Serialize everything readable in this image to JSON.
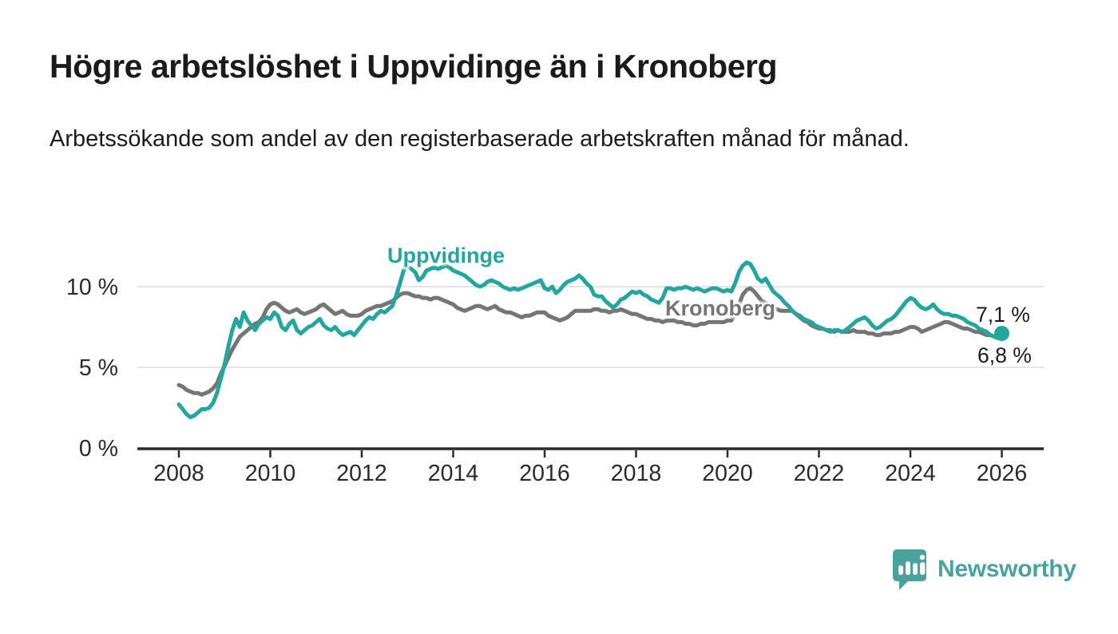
{
  "header": {
    "title": "Högre arbetslöshet i Uppvidinge än i Kronoberg",
    "subtitle": "Arbetssökande som andel av den registerbaserade arbetskraften månad för månad."
  },
  "chart_data": {
    "type": "line",
    "title": "Högre arbetslöshet i Uppvidinge än i Kronoberg",
    "subtitle": "Arbetssökande som andel av den registerbaserade arbetskraften månad för månad.",
    "x_unit": "months",
    "x_start_year": 2008,
    "x_end_year": 2026,
    "x_ticks": [
      2008,
      2010,
      2012,
      2014,
      2016,
      2018,
      2020,
      2022,
      2024,
      2026
    ],
    "y_ticks": [
      {
        "value": 0,
        "label": "0 %"
      },
      {
        "value": 5,
        "label": "5 %"
      },
      {
        "value": 10,
        "label": "10 %"
      }
    ],
    "ylim": [
      0,
      12.5
    ],
    "grid": "horizontal",
    "legend_position": "inline-labels",
    "series": [
      {
        "name": "Kronoberg",
        "color": "#757575",
        "end_value_label": "6,8 %",
        "values": [
          3.9,
          3.8,
          3.6,
          3.5,
          3.4,
          3.4,
          3.3,
          3.4,
          3.5,
          3.7,
          4.0,
          4.6,
          5.1,
          5.6,
          6.1,
          6.5,
          6.9,
          7.1,
          7.3,
          7.5,
          7.7,
          7.8,
          8.1,
          8.6,
          8.9,
          9.0,
          8.9,
          8.7,
          8.5,
          8.4,
          8.5,
          8.6,
          8.4,
          8.3,
          8.4,
          8.5,
          8.6,
          8.8,
          8.9,
          8.7,
          8.5,
          8.3,
          8.4,
          8.5,
          8.3,
          8.2,
          8.2,
          8.2,
          8.3,
          8.5,
          8.6,
          8.7,
          8.8,
          8.8,
          8.9,
          9.0,
          9.1,
          9.3,
          9.5,
          9.6,
          9.6,
          9.5,
          9.4,
          9.4,
          9.3,
          9.3,
          9.2,
          9.3,
          9.3,
          9.2,
          9.1,
          9.0,
          8.9,
          8.7,
          8.6,
          8.5,
          8.6,
          8.7,
          8.8,
          8.8,
          8.7,
          8.6,
          8.7,
          8.8,
          8.6,
          8.5,
          8.4,
          8.4,
          8.3,
          8.2,
          8.1,
          8.2,
          8.2,
          8.3,
          8.4,
          8.4,
          8.4,
          8.2,
          8.1,
          8.0,
          7.9,
          8.0,
          8.1,
          8.3,
          8.5,
          8.5,
          8.5,
          8.5,
          8.5,
          8.6,
          8.6,
          8.5,
          8.5,
          8.4,
          8.5,
          8.5,
          8.6,
          8.5,
          8.4,
          8.3,
          8.3,
          8.2,
          8.1,
          8.0,
          8.0,
          7.9,
          7.9,
          7.8,
          7.9,
          7.9,
          7.9,
          7.8,
          7.8,
          7.7,
          7.7,
          7.6,
          7.6,
          7.7,
          7.7,
          7.8,
          7.8,
          7.8,
          7.8,
          7.8,
          7.9,
          7.9,
          8.3,
          8.9,
          9.5,
          9.8,
          9.9,
          9.7,
          9.4,
          9.1,
          9.0,
          8.8,
          8.7,
          8.6,
          8.5,
          8.5,
          8.5,
          8.5,
          8.3,
          8.1,
          7.9,
          7.8,
          7.6,
          7.5,
          7.4,
          7.4,
          7.3,
          7.3,
          7.2,
          7.3,
          7.2,
          7.2,
          7.2,
          7.3,
          7.2,
          7.2,
          7.2,
          7.1,
          7.1,
          7.0,
          7.0,
          7.1,
          7.1,
          7.1,
          7.2,
          7.2,
          7.3,
          7.4,
          7.5,
          7.5,
          7.4,
          7.2,
          7.3,
          7.4,
          7.5,
          7.6,
          7.7,
          7.8,
          7.8,
          7.7,
          7.6,
          7.5,
          7.4,
          7.4,
          7.3,
          7.2,
          7.2,
          7.1,
          7.0,
          7.0,
          6.9,
          6.9,
          6.8
        ]
      },
      {
        "name": "Uppvidinge",
        "color": "#23a69d",
        "end_value_label": "7,1 %",
        "values": [
          2.7,
          2.4,
          2.1,
          1.9,
          2.0,
          2.2,
          2.4,
          2.4,
          2.5,
          2.8,
          3.4,
          4.3,
          5.2,
          6.3,
          7.3,
          8.0,
          7.5,
          8.4,
          7.9,
          7.6,
          7.3,
          7.7,
          7.9,
          8.1,
          8.0,
          8.4,
          8.2,
          7.5,
          7.3,
          7.7,
          7.9,
          7.3,
          7.1,
          7.3,
          7.5,
          7.6,
          7.8,
          8.0,
          7.6,
          7.4,
          7.3,
          7.5,
          7.2,
          7.0,
          7.1,
          7.2,
          7.0,
          7.3,
          7.6,
          7.9,
          8.1,
          8.0,
          8.3,
          8.5,
          8.4,
          8.6,
          8.8,
          9.4,
          10.2,
          11.0,
          11.3,
          11.1,
          10.9,
          10.4,
          10.6,
          11.0,
          11.1,
          11.2,
          11.1,
          11.2,
          11.3,
          11.2,
          11.0,
          10.9,
          10.8,
          10.7,
          10.5,
          10.3,
          10.1,
          10.0,
          10.1,
          10.3,
          10.4,
          10.3,
          10.2,
          10.0,
          9.9,
          9.8,
          9.9,
          9.8,
          9.9,
          10.0,
          10.1,
          10.2,
          10.3,
          10.4,
          9.9,
          9.8,
          10.0,
          9.6,
          9.8,
          10.1,
          10.3,
          10.4,
          10.5,
          10.7,
          10.5,
          10.2,
          10.0,
          9.5,
          9.4,
          9.4,
          9.1,
          8.9,
          8.7,
          8.9,
          9.2,
          9.3,
          9.5,
          9.7,
          9.6,
          9.7,
          9.5,
          9.4,
          9.2,
          9.1,
          9.0,
          9.3,
          9.9,
          9.9,
          9.8,
          9.9,
          9.9,
          10.0,
          9.9,
          9.8,
          9.9,
          9.8,
          9.7,
          9.8,
          9.9,
          9.9,
          9.8,
          9.7,
          9.8,
          9.7,
          10.2,
          10.9,
          11.3,
          11.5,
          11.4,
          11.0,
          10.5,
          10.3,
          10.5,
          10.1,
          9.7,
          9.5,
          9.3,
          9.0,
          8.8,
          8.5,
          8.3,
          8.2,
          8.0,
          7.9,
          7.8,
          7.6,
          7.5,
          7.4,
          7.3,
          7.2,
          7.3,
          7.3,
          7.2,
          7.3,
          7.5,
          7.7,
          7.9,
          8.0,
          8.1,
          7.9,
          7.6,
          7.4,
          7.5,
          7.7,
          7.9,
          8.0,
          8.2,
          8.5,
          8.8,
          9.1,
          9.3,
          9.2,
          8.9,
          8.7,
          8.6,
          8.7,
          8.9,
          8.6,
          8.4,
          8.3,
          8.3,
          8.2,
          8.2,
          8.1,
          8.0,
          7.8,
          7.7,
          7.6,
          7.4,
          7.3,
          7.2,
          7.0,
          6.9,
          6.8,
          7.1
        ]
      }
    ]
  },
  "annotations": {
    "uppvidinge_end_value": "7,1 %",
    "kronoberg_end_value": "6,8 %"
  },
  "footer": {
    "brand": "Newsworthy",
    "brand_color": "#4aa29c"
  },
  "colors": {
    "uppvidinge_line": "#23a69d",
    "kronoberg_line": "#757575",
    "gridline": "#dcdcdc",
    "axis": "#2b2b2b",
    "text": "#1b1b1b"
  }
}
